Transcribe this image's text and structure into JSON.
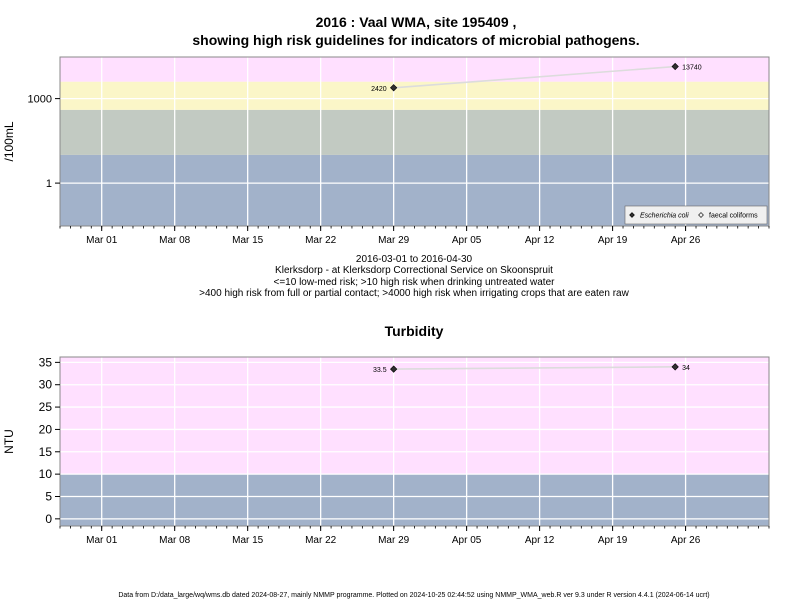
{
  "title_line1": "2016 : Vaal WMA, site 195409 ,",
  "title_line2": "showing high risk guidelines for indicators of microbial pathogens.",
  "subtitle_lines": [
    "2016-03-01 to 2016-04-30",
    "Klerksdorp - at Klerksdorp Correctional Service on Skoonspruit",
    "<=10 low-med risk; >10 high risk when drinking untreated water",
    ">400 high risk from full or partial contact; >4000 high risk when irrigating crops that are eaten raw"
  ],
  "footer": "Data from D:/data_large/wq/wms.db dated 2024-08-27, mainly NMMP programme. Plotted on 2024-10-25 02:44:52 using NMMP_WMA_web.R ver 9.3 under R version 4.4.1 (2024-06-14 ucrt)",
  "colors": {
    "band_pink": "#ffe0ff",
    "band_yellow": "#fbf6c8",
    "band_grey": "#c2cac2",
    "band_blue": "#a2b2ca",
    "grid": "#ffffff",
    "line": "#dcdcdc",
    "point": "#303030"
  },
  "chart_data": [
    {
      "type": "line",
      "title": "",
      "ylabel": "/100mL",
      "yscale": "log10",
      "ylim": [
        0.03,
        30000
      ],
      "xlim": [
        "2016-02-26",
        "2016-05-04"
      ],
      "y_ticks": [
        1,
        1000
      ],
      "y_tick_labels": [
        "1",
        "1000"
      ],
      "x_ticks": [
        "2016-03-01",
        "2016-03-08",
        "2016-03-15",
        "2016-03-22",
        "2016-03-29",
        "2016-04-05",
        "2016-04-12",
        "2016-04-19",
        "2016-04-26"
      ],
      "x_tick_labels": [
        "Mar 01",
        "Mar 08",
        "Mar 15",
        "Mar 22",
        "Mar 29",
        "Apr 05",
        "Apr 12",
        "Apr 19",
        "Apr 26"
      ],
      "risk_bands": [
        {
          "from": 0.03,
          "to": 10,
          "color": "#a2b2ca"
        },
        {
          "from": 10,
          "to": 400,
          "color": "#c2cac2"
        },
        {
          "from": 400,
          "to": 4000,
          "color": "#fbf6c8"
        },
        {
          "from": 4000,
          "to": 30000,
          "color": "#ffe0ff"
        }
      ],
      "grid": true,
      "legend_position": "bottom-right",
      "legend": [
        {
          "label": "Escherichia coli",
          "marker": "filled-diamond",
          "italic": true
        },
        {
          "label": "faecal coliforms",
          "marker": "open-diamond",
          "italic": false
        }
      ],
      "series": [
        {
          "name": "Escherichia coli",
          "points": [
            {
              "x": "2016-03-29",
              "y": 2420,
              "label": "2420"
            },
            {
              "x": "2016-04-25",
              "y": 13740,
              "label": "13740"
            }
          ]
        }
      ]
    },
    {
      "type": "line",
      "title": "Turbidity",
      "ylabel": "NTU",
      "yscale": "linear",
      "ylim": [
        -1.6,
        36.2
      ],
      "xlim": [
        "2016-02-26",
        "2016-05-04"
      ],
      "y_ticks": [
        0,
        5,
        10,
        15,
        20,
        25,
        30,
        35
      ],
      "y_tick_labels": [
        "0",
        "5",
        "10",
        "15",
        "20",
        "25",
        "30",
        "35"
      ],
      "x_ticks": [
        "2016-03-01",
        "2016-03-08",
        "2016-03-15",
        "2016-03-22",
        "2016-03-29",
        "2016-04-05",
        "2016-04-12",
        "2016-04-19",
        "2016-04-26"
      ],
      "x_tick_labels": [
        "Mar 01",
        "Mar 08",
        "Mar 15",
        "Mar 22",
        "Mar 29",
        "Apr 05",
        "Apr 12",
        "Apr 19",
        "Apr 26"
      ],
      "risk_bands": [
        {
          "from": -1.6,
          "to": 10,
          "color": "#a2b2ca"
        },
        {
          "from": 10,
          "to": 36.2,
          "color": "#ffe0ff"
        }
      ],
      "grid": true,
      "series": [
        {
          "name": "",
          "points": [
            {
              "x": "2016-03-29",
              "y": 33.5,
              "label": "33.5"
            },
            {
              "x": "2016-04-25",
              "y": 34,
              "label": "34"
            }
          ]
        }
      ]
    }
  ]
}
